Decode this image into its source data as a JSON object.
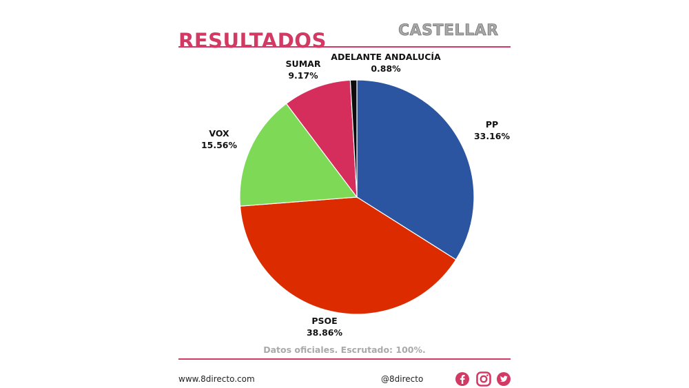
{
  "header": {
    "title": "RESULTADOS",
    "location": "CASTELLAR"
  },
  "chart_data": {
    "type": "pie",
    "slices": [
      {
        "label": "PP",
        "value": 33.16,
        "display": "33.16%",
        "color": "#2b54a1"
      },
      {
        "label": "PSOE",
        "value": 38.86,
        "display": "38.86%",
        "color": "#dd2b00"
      },
      {
        "label": "VOX",
        "value": 15.56,
        "display": "15.56%",
        "color": "#7ed957"
      },
      {
        "label": "SUMAR",
        "value": 9.17,
        "display": "9.17%",
        "color": "#d52d5c"
      },
      {
        "label": "ADELANTE ANDALUCÍA",
        "value": 0.88,
        "display": "0.88%",
        "color": "#0d0d0d"
      }
    ]
  },
  "note": "Datos oficiales. Escrutado: 100%.",
  "footer": {
    "website": "www.8directo.com",
    "handle": "@8directo",
    "social_icons": [
      "facebook-icon",
      "instagram-icon",
      "twitter-icon"
    ],
    "icon_color": "#d23a64"
  }
}
